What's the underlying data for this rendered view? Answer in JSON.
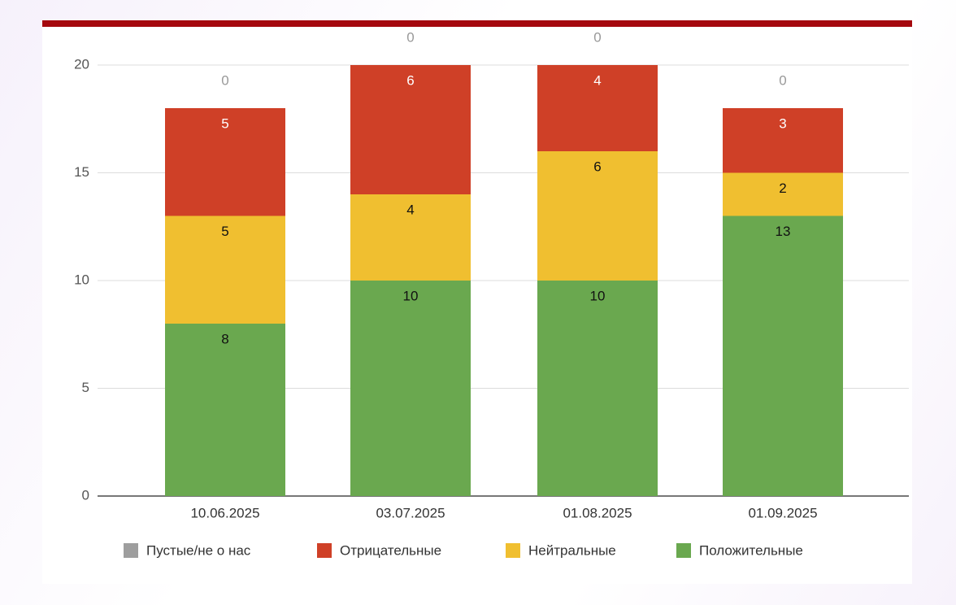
{
  "chart_data": {
    "type": "stacked-bar",
    "categories": [
      "10.06.2025",
      "03.07.2025",
      "01.08.2025",
      "01.09.2025"
    ],
    "series": [
      {
        "name": "Пустые/не о нас",
        "color": "#9e9e9e",
        "values": [
          0,
          0,
          0,
          0
        ]
      },
      {
        "name": "Отрицательные",
        "color": "#cf4027",
        "values": [
          5,
          6,
          4,
          3
        ]
      },
      {
        "name": "Нейтральные",
        "color": "#f0bf30",
        "values": [
          5,
          4,
          6,
          2
        ]
      },
      {
        "name": "Положительные",
        "color": "#6aa84f",
        "values": [
          8,
          10,
          10,
          13
        ]
      }
    ],
    "ylim": [
      0,
      20
    ],
    "yticks": [
      0,
      5,
      10,
      15,
      20
    ],
    "grid": true,
    "legend": "bottom"
  }
}
